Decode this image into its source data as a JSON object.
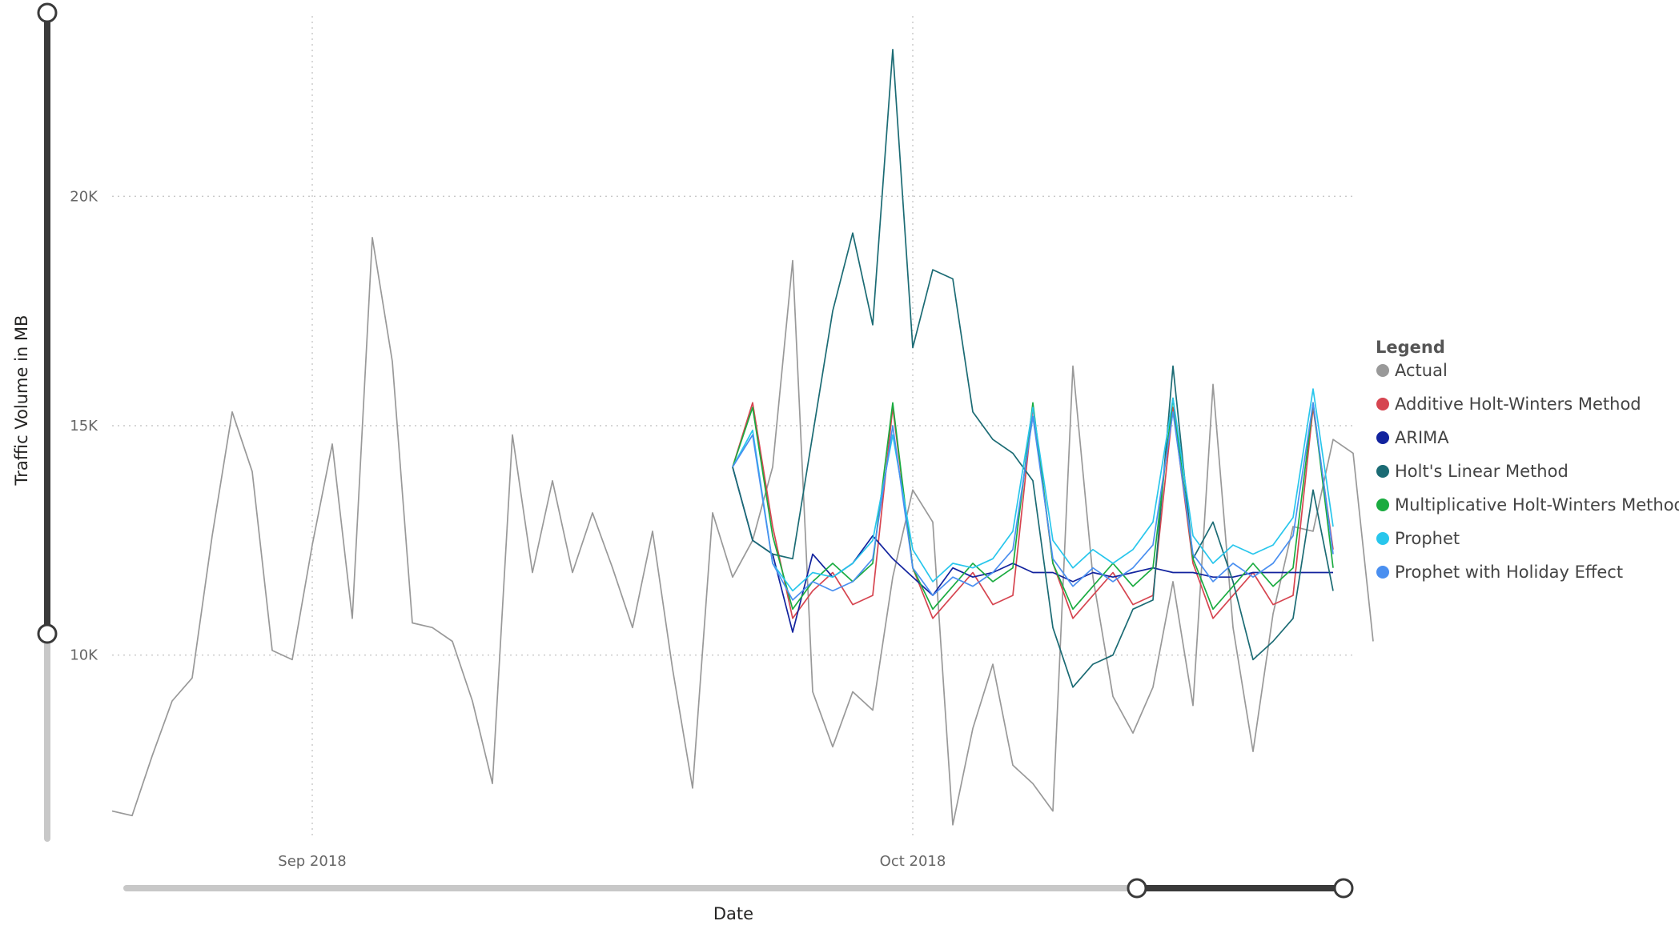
{
  "chart_data": {
    "type": "line",
    "xlabel": "Date",
    "ylabel": "Traffic Volume in MB",
    "x_ticks": [
      {
        "date": "2018-09-01",
        "label": "Sep 2018"
      },
      {
        "date": "2018-10-01",
        "label": "Oct 2018"
      }
    ],
    "y_ticks": [
      {
        "value": 10000,
        "label": "10K"
      },
      {
        "value": 15000,
        "label": "15K"
      },
      {
        "value": 20000,
        "label": "20K"
      }
    ],
    "xlim": [
      "2018-08-22",
      "2018-10-23"
    ],
    "ylim": [
      6000,
      24000
    ],
    "grid": true,
    "legend": {
      "title": "Legend",
      "placement": "right",
      "entries": [
        "Actual",
        "Additive Holt-Winters Method",
        "ARIMA",
        "Holt's Linear Method",
        "Multiplicative Holt-Winters Method",
        "Prophet",
        "Prophet with Holiday Effect"
      ]
    },
    "series": [
      {
        "name": "Actual",
        "color": "#999999",
        "start_date": "2018-08-22",
        "values": [
          6600,
          6500,
          7800,
          9000,
          9500,
          12600,
          15300,
          14000,
          10100,
          9900,
          12400,
          14600,
          10800,
          19100,
          16400,
          10700,
          10600,
          10300,
          9000,
          7200,
          14800,
          11800,
          13800,
          11800,
          13100,
          11900,
          10600,
          12700,
          9700,
          7100,
          13100,
          11700,
          12500,
          14100,
          18600,
          9200,
          8000,
          9200,
          8800,
          11700,
          13600,
          12900,
          6300,
          8400,
          9800,
          7600,
          7200,
          6600,
          16300,
          11700,
          9100,
          8300,
          9300,
          11600,
          8900,
          15900,
          10600,
          7900,
          10900,
          12800,
          12700,
          14700,
          14400,
          10300
        ]
      },
      {
        "name": "Additive Holt-Winters Method",
        "color": "#d64550",
        "start_date": "2018-09-22",
        "values": [
          14100,
          15500,
          12800,
          10800,
          11400,
          11800,
          11100,
          11300,
          15400,
          11900,
          10800,
          11300,
          11800,
          11100,
          11300,
          15400,
          12000,
          10800,
          11300,
          11800,
          11100,
          11300,
          15400,
          12000,
          10800,
          11300,
          11800,
          11100,
          11300,
          15400,
          12300
        ]
      },
      {
        "name": "ARIMA",
        "color": "#12239e",
        "start_date": "2018-09-22",
        "values": [
          14100,
          12500,
          12200,
          10500,
          12200,
          11700,
          12000,
          12600,
          12100,
          11700,
          11300,
          11900,
          11700,
          11800,
          12000,
          11800,
          11800,
          11600,
          11800,
          11700,
          11800,
          11900,
          11800,
          11800,
          11700,
          11700,
          11800,
          11800,
          11800,
          11800,
          11800
        ]
      },
      {
        "name": "Holt's Linear Method",
        "color": "#1b6b74",
        "start_date": "2018-09-22",
        "values": [
          14100,
          12500,
          12200,
          12100,
          14800,
          17500,
          19200,
          17200,
          23200,
          16700,
          18400,
          18200,
          15300,
          14700,
          14400,
          13800,
          10600,
          9300,
          9800,
          10000,
          11000,
          11200,
          16300,
          12100,
          12900,
          11600,
          9900,
          10300,
          10800,
          13600,
          11400
        ]
      },
      {
        "name": "Multiplicative Holt-Winters Method",
        "color": "#1aab40",
        "start_date": "2018-09-22",
        "values": [
          14100,
          15400,
          12600,
          11000,
          11600,
          12000,
          11600,
          12000,
          15500,
          11900,
          11000,
          11500,
          12000,
          11600,
          11900,
          15500,
          12000,
          11000,
          11500,
          12000,
          11500,
          11900,
          15600,
          12100,
          11000,
          11500,
          12000,
          11500,
          11900,
          15500,
          11900
        ]
      },
      {
        "name": "Prophet",
        "color": "#28c6ec",
        "start_date": "2018-09-22",
        "values": [
          14100,
          14900,
          12000,
          11400,
          11800,
          11700,
          12000,
          12500,
          14800,
          12300,
          11600,
          12000,
          11900,
          12100,
          12700,
          15400,
          12500,
          11900,
          12300,
          12000,
          12300,
          12900,
          15600,
          12600,
          12000,
          12400,
          12200,
          12400,
          13000,
          15800,
          12800
        ]
      },
      {
        "name": "Prophet with Holiday Effect",
        "color": "#4a8ff0",
        "start_date": "2018-09-22",
        "values": [
          14100,
          14800,
          12000,
          11200,
          11600,
          11400,
          11600,
          12100,
          15000,
          11900,
          11300,
          11700,
          11500,
          11800,
          12300,
          15200,
          12100,
          11500,
          11900,
          11600,
          11900,
          12400,
          15300,
          12200,
          11600,
          12000,
          11700,
          12000,
          12600,
          15500,
          12200
        ]
      }
    ]
  }
}
